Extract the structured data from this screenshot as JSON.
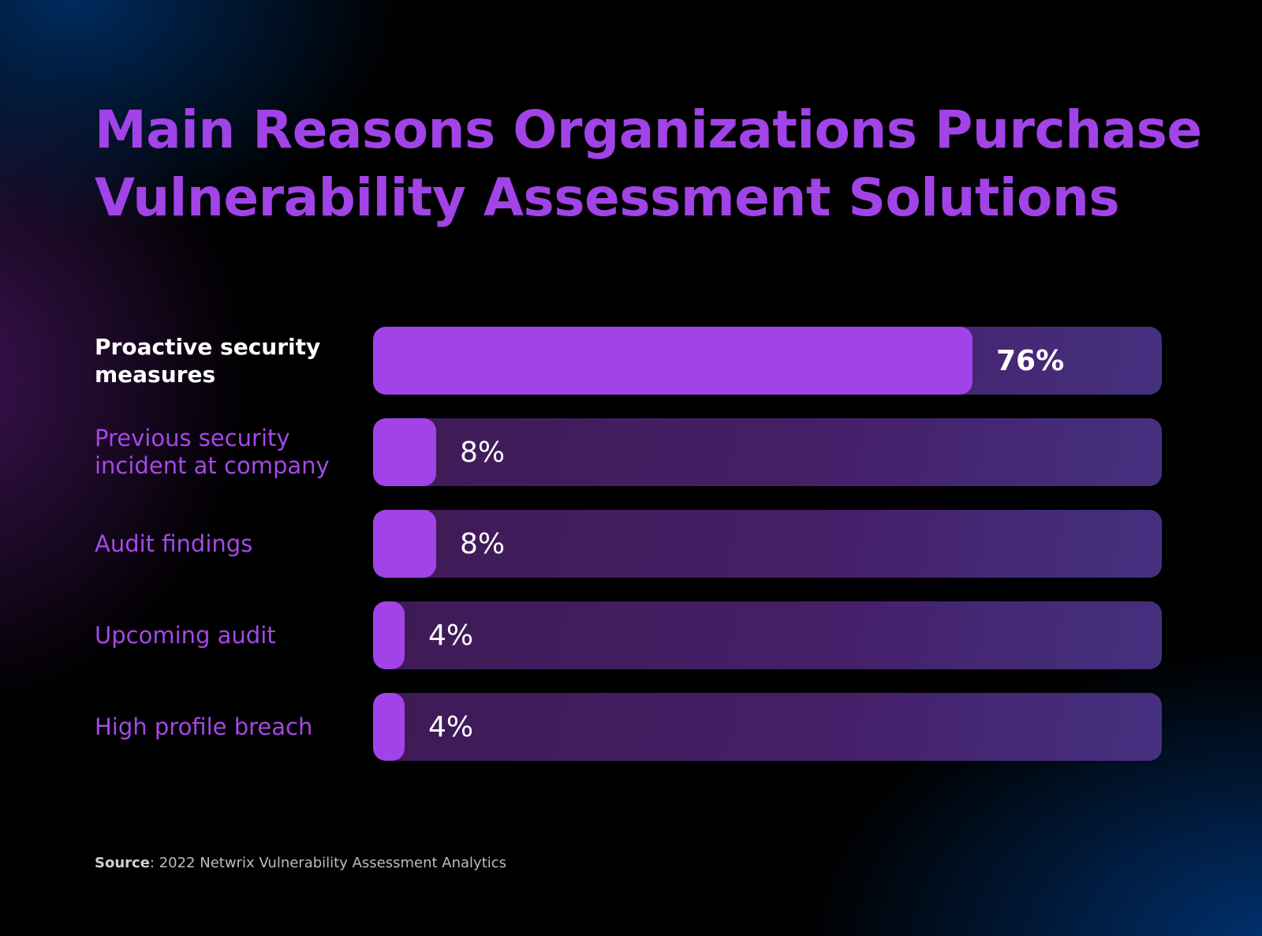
{
  "chart_data": {
    "type": "bar",
    "orientation": "horizontal",
    "title": "Main Reasons Organizations Purchase Vulnerability Assessment Solutions",
    "categories": [
      "Proactive security measures",
      "Previous security incident at company",
      "Audit findings",
      "Upcoming audit",
      "High profile breach"
    ],
    "values": [
      76,
      8,
      8,
      4,
      4
    ],
    "value_labels": [
      "76%",
      "8%",
      "8%",
      "4%",
      "4%"
    ],
    "xlim": [
      0,
      100
    ],
    "highlight_index": 0,
    "colors": {
      "fill": "#a143e6",
      "track": "#42205f",
      "highlight_label": "#ffffff",
      "label": "#a548e6"
    }
  },
  "source": {
    "label": "Source",
    "text": ": 2022 Netwrix Vulnerability Assessment Analytics"
  }
}
